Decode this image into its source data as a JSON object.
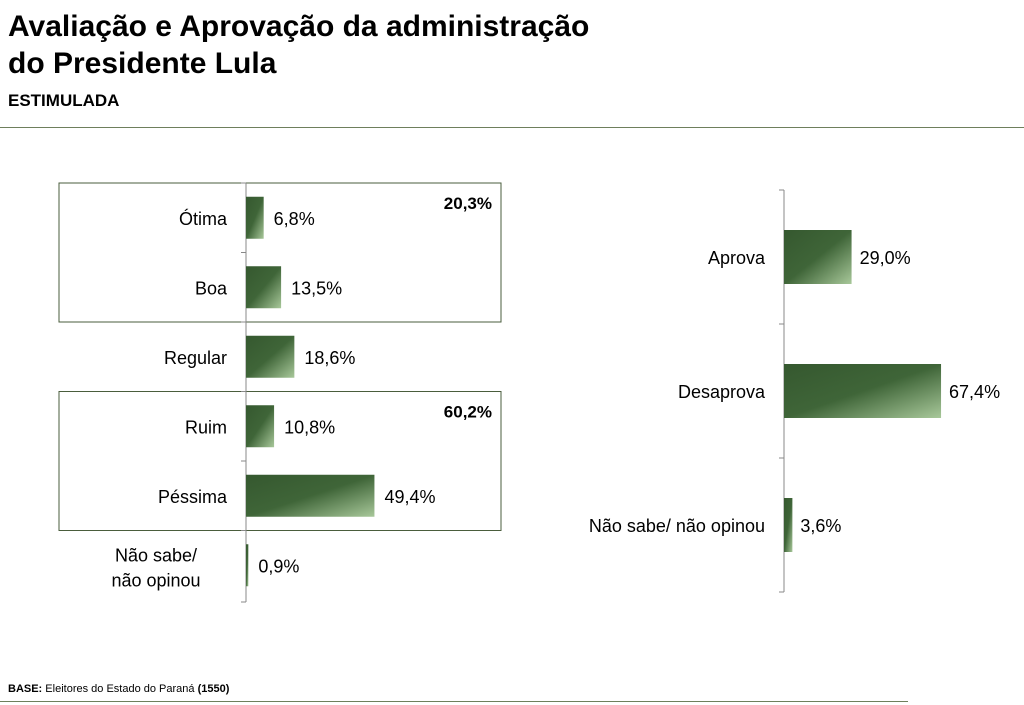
{
  "header": {
    "title_line1": "Avaliação e Aprovação da administração",
    "title_line2": "do Presidente Lula",
    "subtitle": "ESTIMULADA"
  },
  "colors": {
    "bar_dark": "#35582f",
    "bar_light": "#a8c89a",
    "group_border": "#4a5d3c",
    "axis": "#888888"
  },
  "chart_data": [
    {
      "type": "bar",
      "orientation": "horizontal",
      "categories": [
        "Ótima",
        "Boa",
        "Regular",
        "Ruim",
        "Péssima",
        "Não sabe/ não opinou"
      ],
      "values": [
        6.8,
        13.5,
        18.6,
        10.8,
        49.4,
        0.9
      ],
      "value_labels": [
        "6,8%",
        "13,5%",
        "18,6%",
        "10,8%",
        "49,4%",
        "0,9%"
      ],
      "groups": [
        {
          "categories": [
            "Ótima",
            "Boa"
          ],
          "total_label": "20,3%"
        },
        {
          "categories": [
            "Ruim",
            "Péssima"
          ],
          "total_label": "60,2%"
        }
      ],
      "grid": false
    },
    {
      "type": "bar",
      "orientation": "horizontal",
      "categories": [
        "Aprova",
        "Desaprova",
        "Não sabe/ não opinou"
      ],
      "values": [
        29.0,
        67.4,
        3.6
      ],
      "value_labels": [
        "29,0%",
        "67,4%",
        "3,6%"
      ],
      "grid": false
    }
  ],
  "footer": {
    "base_label": "BASE:",
    "base_text": "Eleitores do Estado do Paraná",
    "base_count": "(1550)"
  }
}
